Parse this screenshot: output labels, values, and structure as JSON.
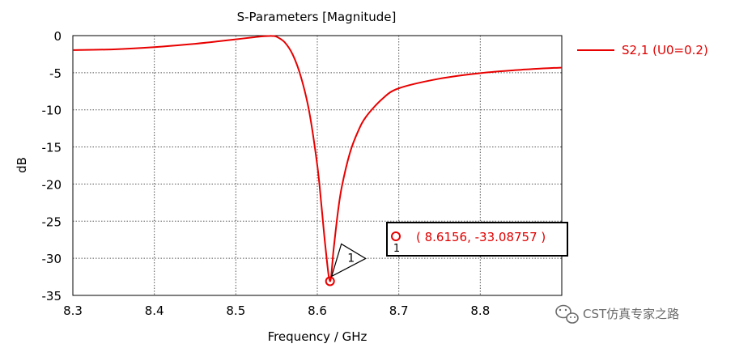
{
  "chart_data": {
    "type": "line",
    "title": "S-Parameters [Magnitude]",
    "xlabel": "Frequency / GHz",
    "ylabel": "dB",
    "xlim": [
      8.3,
      8.9
    ],
    "ylim": [
      -35,
      0
    ],
    "xticks": [
      "8.3",
      "8.4",
      "8.5",
      "8.6",
      "8.7",
      "8.8"
    ],
    "yticks": [
      "0",
      "-5",
      "-10",
      "-15",
      "-20",
      "-25",
      "-30",
      "-35"
    ],
    "grid": true,
    "legend_position": "right",
    "series": [
      {
        "name": "S2,1 (U0=0.2)",
        "color": "#e80000",
        "x": [
          8.3,
          8.35,
          8.4,
          8.45,
          8.48,
          8.5,
          8.52,
          8.53,
          8.54,
          8.545,
          8.55,
          8.56,
          8.57,
          8.58,
          8.59,
          8.6,
          8.605,
          8.61,
          8.6156,
          8.62,
          8.625,
          8.63,
          8.64,
          8.65,
          8.66,
          8.68,
          8.7,
          8.75,
          8.8,
          8.85,
          8.9
        ],
        "y": [
          -1.95,
          -1.85,
          -1.55,
          -1.1,
          -0.75,
          -0.5,
          -0.25,
          -0.12,
          -0.05,
          -0.05,
          -0.15,
          -0.9,
          -2.6,
          -5.6,
          -10.2,
          -17.5,
          -22.8,
          -28.5,
          -33.09,
          -28.8,
          -24.0,
          -20.4,
          -15.8,
          -12.9,
          -10.9,
          -8.5,
          -7.1,
          -5.8,
          -5.05,
          -4.6,
          -4.3
        ]
      }
    ],
    "marker": {
      "id": "1",
      "x": 8.6156,
      "y": -33.08757,
      "label": "( 8.6156, -33.08757 )"
    }
  },
  "watermark": {
    "text": "CST仿真专家之路",
    "icon": "wechat-icon"
  }
}
